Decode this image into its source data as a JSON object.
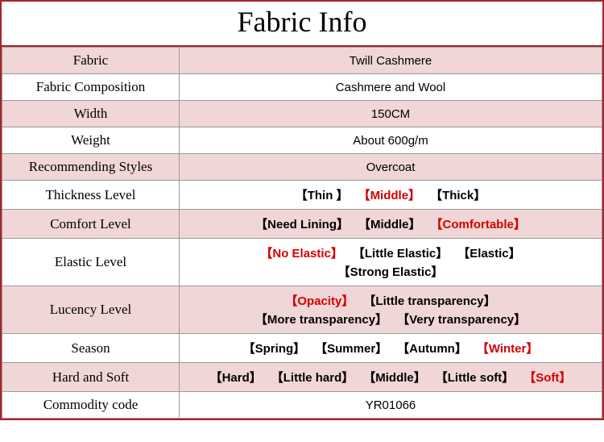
{
  "title": "Fabric Info",
  "colors": {
    "border": "#a92428",
    "row_odd": "#f0d6d6",
    "row_even": "#ffffff",
    "selected": "#d40000",
    "text": "#000000",
    "cell_border": "#999999"
  },
  "rows": [
    {
      "label": "Fabric",
      "type": "plain",
      "value": "Twill Cashmere",
      "bg": "odd"
    },
    {
      "label": "Fabric Composition",
      "type": "plain",
      "value": "Cashmere and Wool",
      "bg": "even"
    },
    {
      "label": "Width",
      "type": "plain",
      "value": "150CM",
      "bg": "odd"
    },
    {
      "label": "Weight",
      "type": "plain",
      "value": "About 600g/m",
      "bg": "even"
    },
    {
      "label": "Recommending Styles",
      "type": "plain",
      "value": "Overcoat",
      "bg": "odd"
    },
    {
      "label": "Thickness Level",
      "type": "options",
      "bg": "even",
      "options": [
        {
          "text": "Thin ",
          "selected": false
        },
        {
          "text": "Middle",
          "selected": true
        },
        {
          "text": "Thick",
          "selected": false
        }
      ]
    },
    {
      "label": "Comfort Level",
      "type": "options",
      "bg": "odd",
      "options": [
        {
          "text": "Need Lining",
          "selected": false
        },
        {
          "text": "Middle",
          "selected": false
        },
        {
          "text": "Comfortable",
          "selected": true
        }
      ]
    },
    {
      "label": "Elastic Level",
      "type": "options",
      "bg": "even",
      "options": [
        {
          "text": "No Elastic",
          "selected": true
        },
        {
          "text": "Little Elastic",
          "selected": false
        },
        {
          "text": "Elastic",
          "selected": false
        },
        {
          "text": "Strong Elastic",
          "selected": false
        }
      ],
      "break_after": 3
    },
    {
      "label": "Lucency Level",
      "type": "options",
      "bg": "odd",
      "options": [
        {
          "text": "Opacity",
          "selected": true
        },
        {
          "text": "Little transparency",
          "selected": false
        },
        {
          "text": "More transparency",
          "selected": false
        },
        {
          "text": "Very transparency",
          "selected": false
        }
      ],
      "break_after": 2
    },
    {
      "label": "Season",
      "type": "options",
      "bg": "even",
      "options": [
        {
          "text": "Spring",
          "selected": false
        },
        {
          "text": "Summer",
          "selected": false
        },
        {
          "text": "Autumn",
          "selected": false
        },
        {
          "text": "Winter",
          "selected": true
        }
      ]
    },
    {
      "label": "Hard and Soft",
      "type": "options",
      "bg": "odd",
      "options": [
        {
          "text": "Hard",
          "selected": false
        },
        {
          "text": "Little hard",
          "selected": false
        },
        {
          "text": "Middle",
          "selected": false
        },
        {
          "text": "Little soft",
          "selected": false
        },
        {
          "text": "Soft",
          "selected": true
        }
      ]
    },
    {
      "label": "Commodity code",
      "type": "plain",
      "value": "YR01066",
      "bg": "even"
    }
  ]
}
